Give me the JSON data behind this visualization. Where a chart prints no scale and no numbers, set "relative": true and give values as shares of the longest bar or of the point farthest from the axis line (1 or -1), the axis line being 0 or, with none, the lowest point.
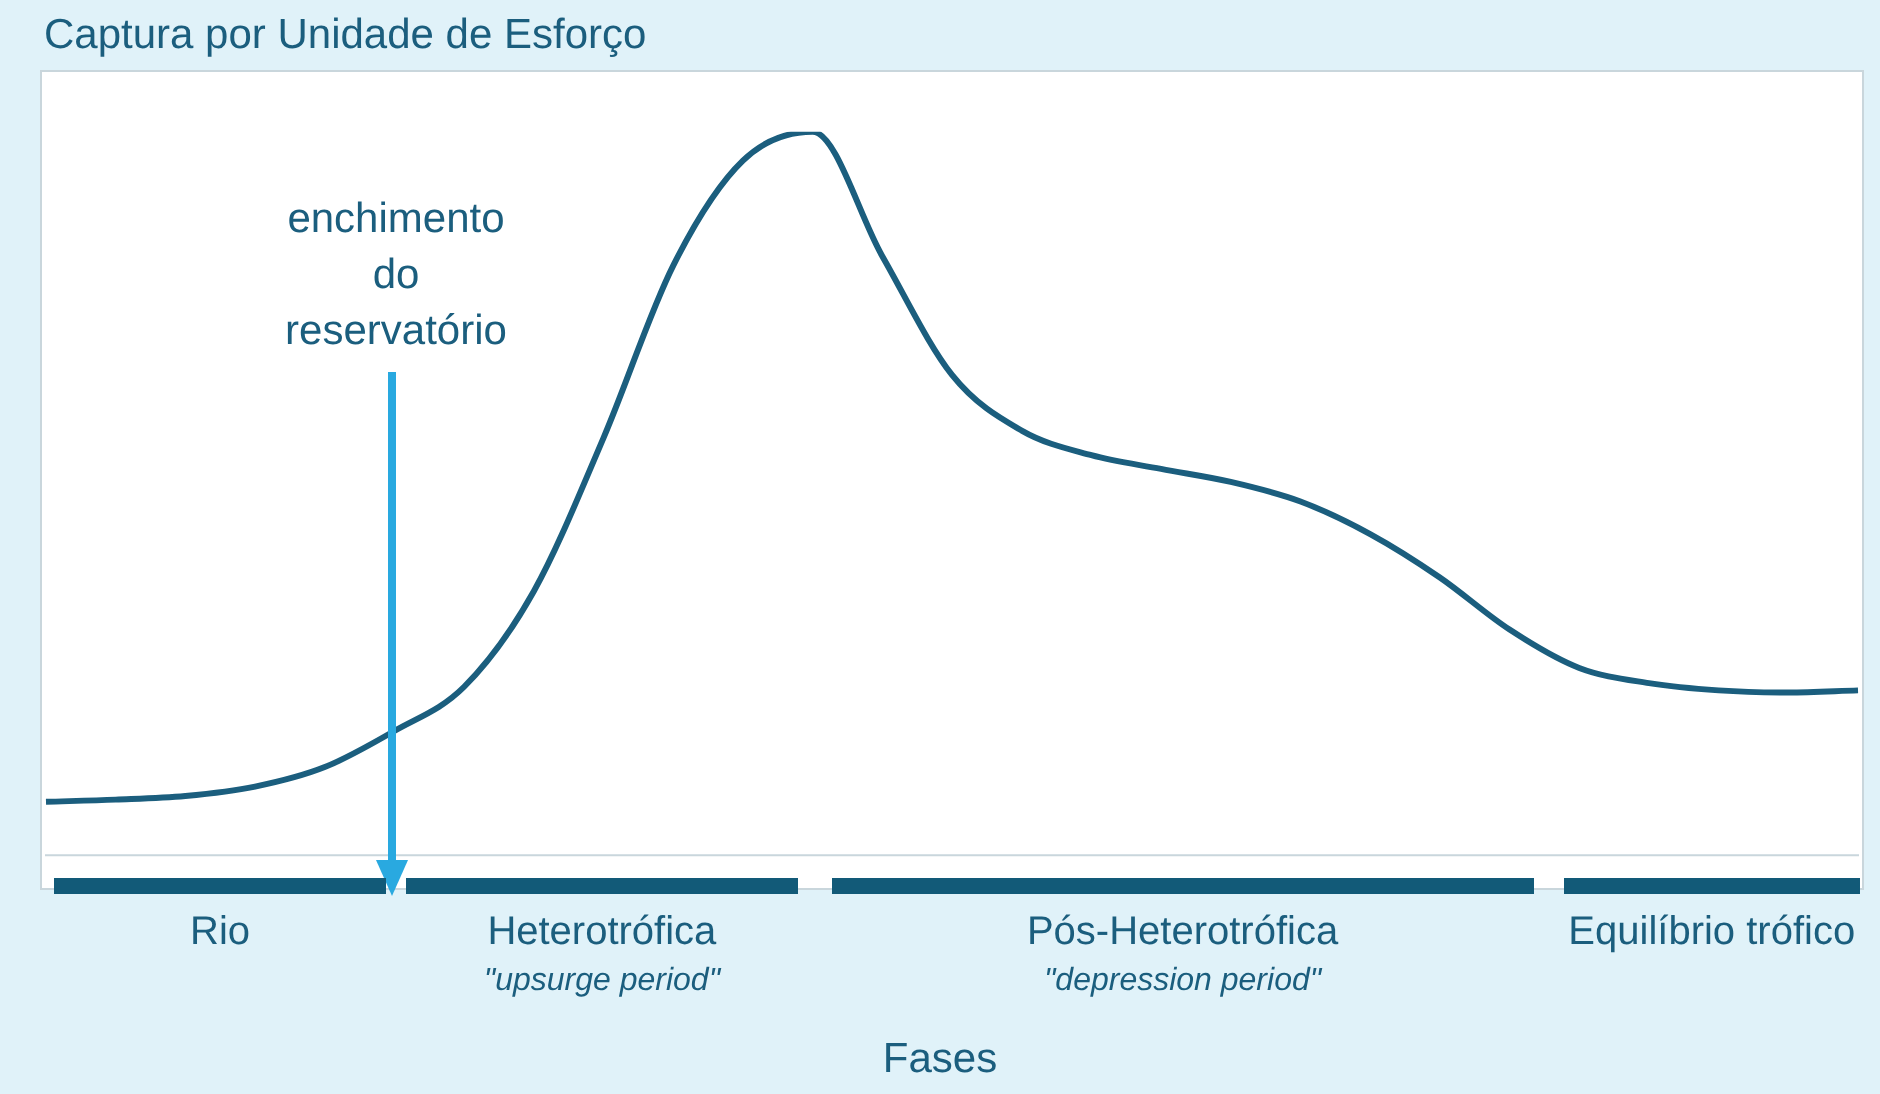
{
  "chart_data": {
    "type": "line",
    "relative": true,
    "ylabel": "Captura por Unidade de Esforço",
    "xlabel": "Fases",
    "categories": [
      null,
      null,
      null,
      null,
      null,
      null,
      null,
      null,
      null,
      null,
      null,
      null,
      null,
      null,
      null,
      null,
      null,
      null,
      null,
      null,
      null,
      null,
      null,
      null,
      null,
      null,
      null
    ],
    "series": [
      {
        "color": "#1b5e7e",
        "values": [
          0.074,
          0.077,
          0.082,
          0.095,
          0.122,
          0.172,
          0.233,
          0.365,
          0.577,
          0.815,
          0.96,
          1,
          0.828,
          0.664,
          0.587,
          0.553,
          0.534,
          0.516,
          0.489,
          0.444,
          0.384,
          0.312,
          0.259,
          0.238,
          0.228,
          0.225,
          0.228
        ]
      }
    ],
    "annotations": [
      "enchimento do reservatório",
      "Rio",
      "Heterotrófica",
      "\"upsurge period\"",
      "Pós-Heterotrófica",
      "\"depression period\"",
      "Equilíbrio trófico"
    ],
    "legend": false,
    "marker": "none",
    "line_style": "solid"
  }
}
